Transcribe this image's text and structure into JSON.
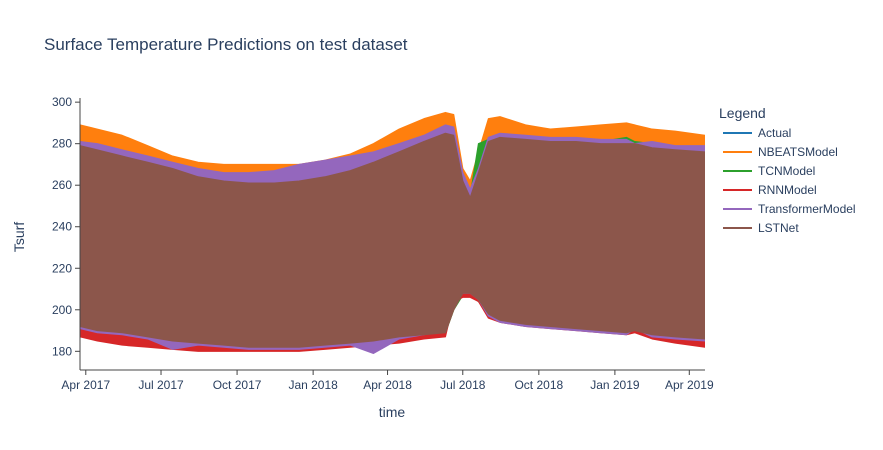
{
  "chart_data": {
    "type": "line",
    "title": "Surface Temperature Predictions on test dataset",
    "xlabel": "time",
    "ylabel": "Tsurf",
    "x_range": [
      "2017-03-25",
      "2019-04-20"
    ],
    "ylim": [
      171,
      302
    ],
    "y_ticks": [
      180,
      200,
      220,
      240,
      260,
      280,
      300
    ],
    "x_ticks": [
      {
        "date": "2017-04-01",
        "label": "Apr 2017"
      },
      {
        "date": "2017-07-01",
        "label": "Jul 2017"
      },
      {
        "date": "2017-10-01",
        "label": "Oct 2017"
      },
      {
        "date": "2018-01-01",
        "label": "Jan 2018"
      },
      {
        "date": "2018-04-01",
        "label": "Apr 2018"
      },
      {
        "date": "2018-07-01",
        "label": "Jul 2018"
      },
      {
        "date": "2018-10-01",
        "label": "Oct 2018"
      },
      {
        "date": "2019-01-01",
        "label": "Jan 2019"
      },
      {
        "date": "2019-04-01",
        "label": "Apr 2019"
      }
    ],
    "grid": false,
    "legend": {
      "title": "Legend",
      "position": "right"
    },
    "x": [
      "2017-03-25",
      "2017-04-15",
      "2017-05-15",
      "2017-06-15",
      "2017-07-15",
      "2017-08-15",
      "2017-09-15",
      "2017-10-15",
      "2017-11-15",
      "2017-12-15",
      "2018-01-15",
      "2018-02-15",
      "2018-03-15",
      "2018-04-15",
      "2018-05-15",
      "2018-06-10",
      "2018-06-20",
      "2018-07-01",
      "2018-07-10",
      "2018-07-20",
      "2018-08-01",
      "2018-08-15",
      "2018-09-15",
      "2018-10-15",
      "2018-11-15",
      "2018-12-15",
      "2019-01-15",
      "2019-01-25",
      "2019-02-15",
      "2019-03-15",
      "2019-04-20"
    ],
    "series": [
      {
        "name": "Actual",
        "color": "#1f77b4",
        "upper": [
          279,
          277,
          274,
          271,
          268,
          264,
          262,
          261,
          261,
          262,
          264,
          267,
          271,
          276,
          281,
          285,
          284,
          262,
          254,
          266,
          281,
          283,
          282,
          281,
          281,
          280,
          280,
          280,
          278,
          277,
          276
        ],
        "lower": [
          192,
          190,
          189,
          187,
          185,
          184,
          183,
          182,
          182,
          182,
          183,
          184,
          185,
          187,
          188,
          189,
          200,
          208,
          208,
          205,
          198,
          195,
          193,
          192,
          191,
          190,
          189,
          190,
          188,
          187,
          186
        ]
      },
      {
        "name": "NBEATSModel",
        "color": "#ff7f0e",
        "upper": [
          289,
          287,
          284,
          279,
          274,
          271,
          270,
          270,
          270,
          270,
          272,
          275,
          280,
          287,
          292,
          295,
          294,
          268,
          262,
          276,
          292,
          293,
          289,
          287,
          288,
          289,
          290,
          289,
          287,
          286,
          284
        ],
        "lower": [
          192,
          190,
          189,
          187,
          185,
          184,
          183,
          182,
          182,
          182,
          183,
          184,
          185,
          187,
          188,
          189,
          200,
          208,
          208,
          205,
          198,
          195,
          193,
          192,
          191,
          190,
          189,
          190,
          188,
          187,
          186
        ]
      },
      {
        "name": "TCNModel",
        "color": "#2ca02c",
        "upper": [
          281,
          279,
          276,
          272,
          269,
          266,
          263,
          262,
          262,
          263,
          265,
          268,
          272,
          277,
          282,
          286,
          285,
          263,
          255,
          280,
          282,
          284,
          283,
          282,
          282,
          281,
          283,
          281,
          280,
          278,
          277
        ],
        "lower": [
          192,
          190,
          189,
          187,
          185,
          184,
          183,
          182,
          182,
          182,
          183,
          184,
          185,
          187,
          188,
          189,
          200,
          207,
          207,
          204,
          198,
          195,
          193,
          192,
          191,
          190,
          189,
          190,
          188,
          187,
          186
        ]
      },
      {
        "name": "RNNModel",
        "color": "#d62728",
        "upper": [
          279,
          277,
          274,
          271,
          268,
          264,
          262,
          261,
          261,
          262,
          264,
          267,
          271,
          276,
          281,
          285,
          284,
          262,
          254,
          266,
          281,
          283,
          282,
          281,
          281,
          280,
          280,
          280,
          278,
          277,
          276
        ],
        "lower": [
          187,
          185,
          183,
          182,
          181,
          180,
          180,
          180,
          180,
          180,
          181,
          182,
          183,
          184,
          186,
          187,
          204,
          206,
          206,
          204,
          196,
          194,
          192,
          191,
          190,
          189,
          188,
          189,
          186,
          184,
          182
        ]
      },
      {
        "name": "TransformerModel",
        "color": "#9467bd",
        "upper": [
          281,
          280,
          277,
          274,
          271,
          268,
          266,
          266,
          267,
          270,
          272,
          274,
          276,
          280,
          284,
          289,
          288,
          266,
          258,
          268,
          283,
          285,
          284,
          283,
          283,
          282,
          282,
          280,
          281,
          279,
          279
        ],
        "lower": [
          191,
          189,
          188,
          186,
          181,
          183,
          182,
          181,
          181,
          181,
          182,
          183,
          179,
          186,
          188,
          190,
          202,
          208,
          208,
          205,
          197,
          194,
          192,
          191,
          190,
          189,
          188,
          191,
          187,
          186,
          185
        ]
      },
      {
        "name": "LSTNet",
        "color": "#8c564b",
        "upper": [
          279,
          277,
          274,
          271,
          268,
          264,
          262,
          261,
          261,
          262,
          264,
          267,
          271,
          276,
          281,
          285,
          284,
          262,
          254,
          266,
          281,
          283,
          282,
          281,
          281,
          280,
          280,
          280,
          278,
          277,
          276
        ],
        "lower": [
          192,
          190,
          189,
          187,
          185,
          184,
          183,
          182,
          182,
          182,
          183,
          184,
          185,
          187,
          188,
          189,
          200,
          208,
          208,
          205,
          198,
          195,
          193,
          192,
          191,
          190,
          189,
          190,
          188,
          187,
          186
        ]
      }
    ]
  }
}
